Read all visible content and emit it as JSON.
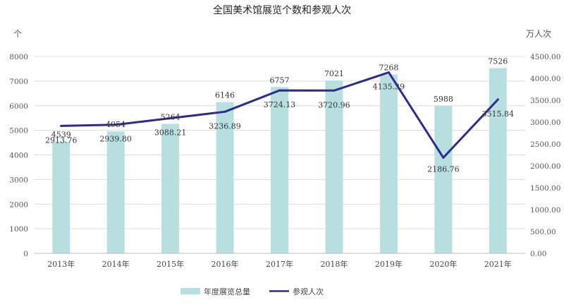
{
  "chart_data": {
    "type": "bar",
    "title": "全国美术馆展览个数和参观人次",
    "left_unit": "个",
    "right_unit": "万人次",
    "categories": [
      "2013年",
      "2014年",
      "2015年",
      "2016年",
      "2017年",
      "2018年",
      "2019年",
      "2020年",
      "2021年"
    ],
    "series": [
      {
        "name": "年度展览总量",
        "type": "bar",
        "axis": "left",
        "color": "#b7dfe0",
        "values": [
          4539,
          4954,
          5264,
          6146,
          6757,
          7021,
          7268,
          5988,
          7526
        ],
        "labels": [
          "4539",
          "4954",
          "5264",
          "6146",
          "6757",
          "7021",
          "7268",
          "5988",
          "7526"
        ]
      },
      {
        "name": "参观人次",
        "type": "line",
        "axis": "right",
        "color": "#2e2b8a",
        "values": [
          2913.76,
          2939.8,
          3088.21,
          3236.89,
          3724.13,
          3720.96,
          4135.39,
          2186.76,
          3515.84
        ],
        "labels": [
          "2913.76",
          "2939.80",
          "3088.21",
          "3236.89",
          "3724.13",
          "3720.96",
          "4135.39",
          "2186.76",
          "3515.84"
        ]
      }
    ],
    "left_axis": {
      "ylim": [
        0,
        8000
      ],
      "ticks": [
        "0",
        "1000",
        "2000",
        "3000",
        "4000",
        "5000",
        "6000",
        "7000",
        "8000"
      ]
    },
    "right_axis": {
      "ylim": [
        0,
        4500
      ],
      "ticks": [
        "0.00",
        "500.00",
        "1000.00",
        "1500.00",
        "2000.00",
        "2500.00",
        "3000.00",
        "3500.00",
        "4000.00",
        "4500.00"
      ]
    },
    "grid": true,
    "legend_position": "bottom"
  }
}
